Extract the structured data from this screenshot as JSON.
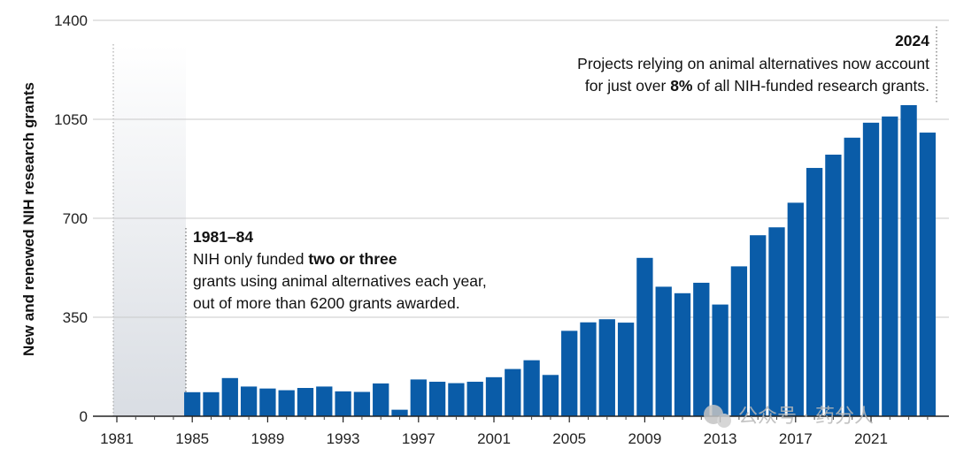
{
  "chart_data": {
    "type": "bar",
    "ylabel": "New and renewed NIH research grants",
    "yticks": [
      0,
      350,
      700,
      1050,
      1400
    ],
    "ylim": [
      0,
      1400
    ],
    "xticks": [
      "1981",
      "1985",
      "1989",
      "1993",
      "1997",
      "2001",
      "2005",
      "2009",
      "2013",
      "2017",
      "2021"
    ],
    "grid": "horizontal",
    "color": "#0a5ca8",
    "categories": [
      1985,
      1986,
      1987,
      1988,
      1989,
      1990,
      1991,
      1992,
      1993,
      1994,
      1995,
      1996,
      1997,
      1998,
      1999,
      2000,
      2001,
      2002,
      2003,
      2004,
      2005,
      2006,
      2007,
      2008,
      2009,
      2010,
      2011,
      2012,
      2013,
      2014,
      2015,
      2016,
      2017,
      2018,
      2019,
      2020,
      2021,
      2022,
      2023,
      2024
    ],
    "values": [
      85,
      85,
      135,
      105,
      98,
      92,
      100,
      105,
      88,
      86,
      116,
      23,
      130,
      122,
      117,
      122,
      138,
      167,
      198,
      146,
      302,
      332,
      343,
      331,
      560,
      458,
      435,
      472,
      395,
      530,
      640,
      668,
      755,
      878,
      925,
      985,
      1038,
      1060,
      1100,
      1003
    ],
    "shaded_period": [
      "1981",
      "1984"
    ],
    "annotations": {
      "early": {
        "title": "1981–84",
        "line1_plain": "NIH only funded ",
        "line1_bold": "two or three",
        "line2": "grants using animal alternatives each year,",
        "line3": "out of more than 6200 grants awarded."
      },
      "late": {
        "title": "2024",
        "line1": "Projects relying on animal alternatives now account",
        "line2_plain": "for just over ",
        "line2_bold": "8%",
        "line2_rest": " of all NIH-funded research grants."
      }
    }
  },
  "watermark": "公众号 · 药分人"
}
